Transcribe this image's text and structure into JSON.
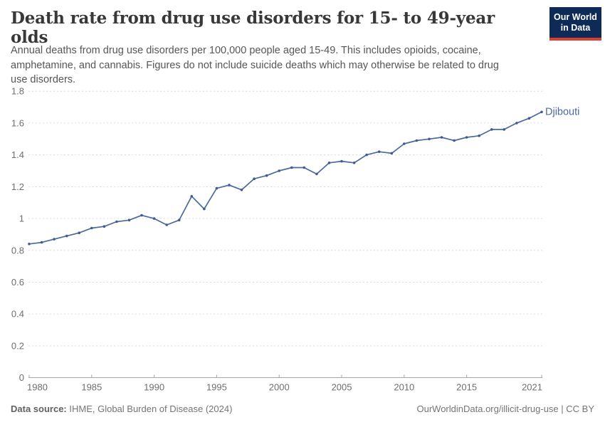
{
  "header": {
    "title": "Death rate from drug use disorders for 15- to 49-year olds",
    "subtitle": "Annual deaths from drug use disorders per 100,000 people aged 15-49. This includes opioids, cocaine, amphetamine, and cannabis. Figures do not include suicide deaths which may otherwise be related to drug use disorders.",
    "logo": {
      "line1": "Our World",
      "line2": "in Data"
    }
  },
  "chart_data": {
    "type": "line",
    "title": "Death rate from drug use disorders for 15- to 49-year olds",
    "xlim": [
      1980,
      2021
    ],
    "ylim": [
      0,
      1.8
    ],
    "grid": "horizontal-dashed",
    "legend_position": "end-of-line-label",
    "series": [
      {
        "name": "Djibouti",
        "x": [
          1980,
          1981,
          1982,
          1983,
          1984,
          1985,
          1986,
          1987,
          1988,
          1989,
          1990,
          1991,
          1992,
          1993,
          1994,
          1995,
          1996,
          1997,
          1998,
          1999,
          2000,
          2001,
          2002,
          2003,
          2004,
          2005,
          2006,
          2007,
          2008,
          2009,
          2010,
          2011,
          2012,
          2013,
          2014,
          2015,
          2016,
          2017,
          2018,
          2019,
          2020,
          2021
        ],
        "values": [
          0.84,
          0.85,
          0.87,
          0.89,
          0.91,
          0.94,
          0.95,
          0.98,
          0.99,
          1.02,
          1.0,
          0.96,
          0.99,
          1.14,
          1.06,
          1.19,
          1.21,
          1.18,
          1.25,
          1.27,
          1.3,
          1.32,
          1.32,
          1.28,
          1.35,
          1.36,
          1.35,
          1.4,
          1.42,
          1.41,
          1.47,
          1.49,
          1.5,
          1.51,
          1.49,
          1.51,
          1.52,
          1.56,
          1.56,
          1.6,
          1.63,
          1.67
        ]
      }
    ],
    "x_ticks": [
      {
        "year": 1980,
        "label": "1980"
      },
      {
        "year": 1985,
        "label": "1985"
      },
      {
        "year": 1990,
        "label": "1990"
      },
      {
        "year": 1995,
        "label": "1995"
      },
      {
        "year": 2000,
        "label": "2000"
      },
      {
        "year": 2005,
        "label": "2005"
      },
      {
        "year": 2010,
        "label": "2010"
      },
      {
        "year": 2015,
        "label": "2015"
      },
      {
        "year": 2021,
        "label": "2021"
      }
    ],
    "y_ticks": [
      {
        "value": 0,
        "label": "0"
      },
      {
        "value": 0.2,
        "label": "0.2"
      },
      {
        "value": 0.4,
        "label": "0.4"
      },
      {
        "value": 0.6,
        "label": "0.6"
      },
      {
        "value": 0.8,
        "label": "0.8"
      },
      {
        "value": 1,
        "label": "1"
      },
      {
        "value": 1.2,
        "label": "1.2"
      },
      {
        "value": 1.4,
        "label": "1.4"
      },
      {
        "value": 1.6,
        "label": "1.6"
      },
      {
        "value": 1.8,
        "label": "1.8"
      }
    ]
  },
  "colors": {
    "line": "#4C6A9C",
    "marker": "#3D5C96",
    "end_label": "#4C6A9C",
    "grid": "#dcdcdc",
    "axis": "#a3a3a3",
    "tick_label": "#6e6e6e",
    "logo_bg": "#0d2b56",
    "logo_red": "#dc3e32"
  },
  "footer": {
    "datasource_label": "Data source:",
    "datasource_value": " IHME, Global Burden of Disease (2024)",
    "link": "OurWorldinData.org/illicit-drug-use | CC BY"
  }
}
